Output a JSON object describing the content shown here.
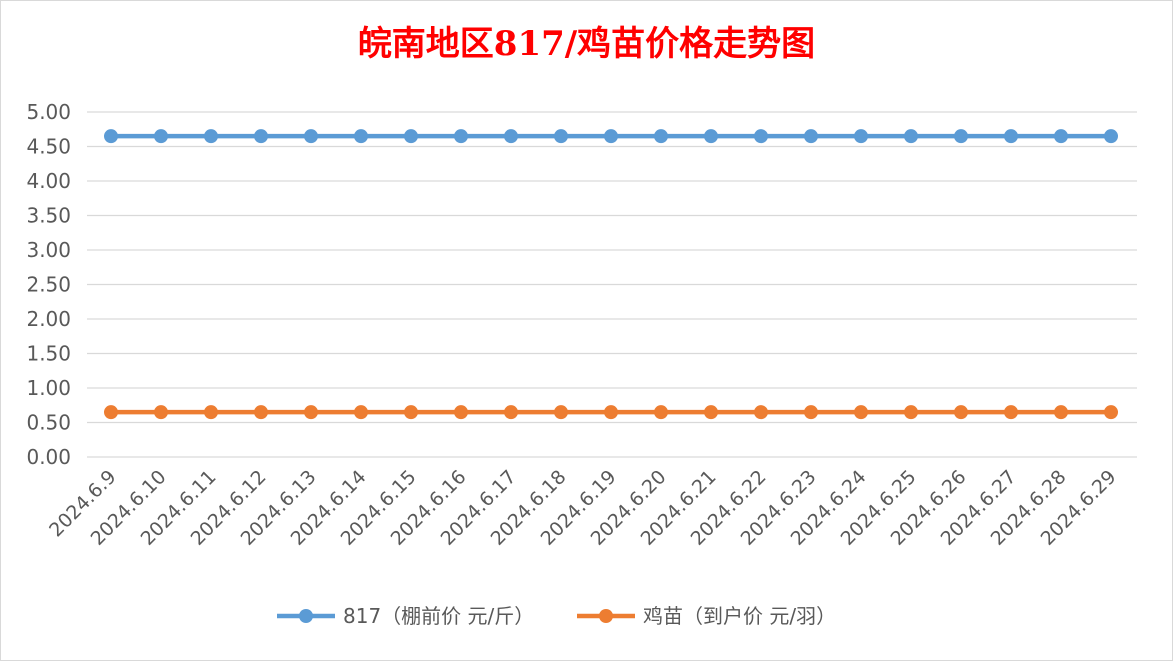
{
  "chart_data": {
    "type": "line",
    "title": "皖南地区817/鸡苗价格走势图",
    "xlabel": "",
    "ylabel": "",
    "categories": [
      "2024.6.9",
      "2024.6.10",
      "2024.6.11",
      "2024.6.12",
      "2024.6.13",
      "2024.6.14",
      "2024.6.15",
      "2024.6.16",
      "2024.6.17",
      "2024.6.18",
      "2024.6.19",
      "2024.6.20",
      "2024.6.21",
      "2024.6.22",
      "2024.6.23",
      "2024.6.24",
      "2024.6.25",
      "2024.6.26",
      "2024.6.27",
      "2024.6.28",
      "2024.6.29"
    ],
    "y_ticks": [
      "0.00",
      "0.50",
      "1.00",
      "1.50",
      "2.00",
      "2.50",
      "3.00",
      "3.50",
      "4.00",
      "4.50",
      "5.00"
    ],
    "ylim": [
      0,
      5
    ],
    "grid": true,
    "legend_position": "bottom",
    "series": [
      {
        "name": "817（棚前价 元/斤）",
        "color": "#5b9bd5",
        "values": [
          4.65,
          4.65,
          4.65,
          4.65,
          4.65,
          4.65,
          4.65,
          4.65,
          4.65,
          4.65,
          4.65,
          4.65,
          4.65,
          4.65,
          4.65,
          4.65,
          4.65,
          4.65,
          4.65,
          4.65,
          4.65
        ]
      },
      {
        "name": "鸡苗（到户价 元/羽）",
        "color": "#ed7d31",
        "values": [
          0.65,
          0.65,
          0.65,
          0.65,
          0.65,
          0.65,
          0.65,
          0.65,
          0.65,
          0.65,
          0.65,
          0.65,
          0.65,
          0.65,
          0.65,
          0.65,
          0.65,
          0.65,
          0.65,
          0.65,
          0.65
        ]
      }
    ]
  }
}
